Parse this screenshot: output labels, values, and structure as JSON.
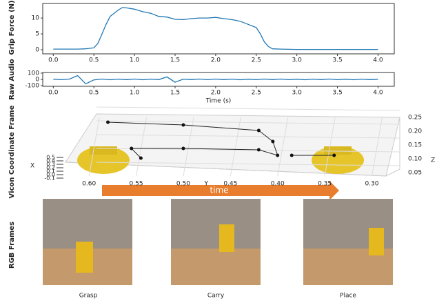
{
  "chart_data": [
    {
      "type": "line",
      "ylabel": "Grip Force (N)",
      "color": "#1f77b4",
      "x": [
        0,
        0.1,
        0.2,
        0.3,
        0.4,
        0.5,
        0.55,
        0.6,
        0.65,
        0.7,
        0.75,
        0.8,
        0.85,
        0.9,
        1.0,
        1.1,
        1.2,
        1.3,
        1.4,
        1.5,
        1.6,
        1.7,
        1.8,
        1.9,
        2.0,
        2.1,
        2.2,
        2.3,
        2.4,
        2.5,
        2.55,
        2.6,
        2.65,
        2.7,
        2.8,
        3.0,
        3.2,
        3.4,
        3.6,
        3.8,
        4.0
      ],
      "values": [
        0.2,
        0.2,
        0.2,
        0.2,
        0.3,
        0.6,
        2,
        5,
        8,
        10.5,
        11.5,
        12.5,
        13.3,
        13.2,
        12.8,
        12,
        11.5,
        10.5,
        10.3,
        9.6,
        9.5,
        9.8,
        10,
        10,
        10.2,
        9.8,
        9.5,
        9,
        8,
        7,
        5,
        2.5,
        1,
        0.3,
        0.2,
        0.1,
        0.1,
        0.1,
        0.1,
        0.1,
        0.1
      ],
      "xlim": [
        -0.13,
        4.2
      ],
      "ylim": [
        -1.3,
        14.6
      ],
      "xticks": [
        {
          "value": 0,
          "label": "0.0"
        },
        0.5,
        {
          "value": 1,
          "label": "1.0"
        },
        1.5,
        {
          "value": 2,
          "label": "2.0"
        },
        2.5,
        {
          "value": 3,
          "label": "3.0"
        },
        3.5,
        {
          "value": 4,
          "label": "4.0"
        }
      ],
      "yticks": [
        0,
        5,
        10
      ]
    },
    {
      "type": "line",
      "ylabel": "Raw Audio",
      "xlabel": "Time (s)",
      "color": "#1f77b4",
      "x": [
        0,
        0.1,
        0.2,
        0.3,
        0.4,
        0.5,
        0.6,
        0.7,
        0.8,
        0.9,
        1.0,
        1.1,
        1.2,
        1.3,
        1.4,
        1.5,
        1.6,
        1.7,
        1.8,
        1.9,
        2.0,
        2.1,
        2.2,
        2.3,
        2.4,
        2.5,
        2.6,
        2.7,
        2.8,
        2.9,
        3.0,
        3.1,
        3.2,
        3.3,
        3.4,
        3.5,
        3.6,
        3.7,
        3.8,
        3.9,
        4.0
      ],
      "values": [
        3,
        -4,
        5,
        60,
        -70,
        -8,
        6,
        -5,
        4,
        -3,
        5,
        -6,
        4,
        -3,
        40,
        -45,
        4,
        -3,
        5,
        -4,
        6,
        -3,
        4,
        -5,
        3,
        -4,
        5,
        -3,
        6,
        -4,
        3,
        -5,
        4,
        -3,
        5,
        -4,
        3,
        -5,
        4,
        -3,
        2
      ],
      "xlim": [
        -0.13,
        4.2
      ],
      "ylim": [
        -110,
        110
      ],
      "xticks": [
        {
          "value": 0,
          "label": "0.0"
        },
        0.5,
        {
          "value": 1,
          "label": "1.0"
        },
        1.5,
        {
          "value": 2,
          "label": "2.0"
        },
        2.5,
        {
          "value": 3,
          "label": "3.0"
        },
        3.5,
        {
          "value": 4,
          "label": "4.0"
        }
      ],
      "yticks": [
        -100,
        0,
        100
      ]
    },
    {
      "type": "line3d",
      "title": "Vicon Coordinate Frame",
      "xlabel": "X",
      "ylabel": "Y",
      "zlabel": "Z",
      "color": "#222222",
      "series": [
        {
          "y": [
            0.58,
            0.5,
            0.42,
            0.405,
            0.4,
            0.42,
            0.5,
            0.555,
            0.545
          ],
          "z": [
            0.22,
            0.21,
            0.19,
            0.15,
            0.1,
            0.12,
            0.125,
            0.125,
            0.09
          ]
        },
        {
          "y": [
            0.385,
            0.34
          ],
          "z": [
            0.1,
            0.1
          ]
        }
      ],
      "ylim": [
        0.625,
        0.285
      ],
      "zlim": [
        0.05,
        0.25
      ],
      "xlim": [
        -0.1,
        0.5
      ],
      "yticks": [
        {
          "value": 0.6,
          "label": "0.60"
        },
        0.55,
        {
          "value": 0.5,
          "label": "0.50"
        },
        0.45,
        {
          "value": 0.4,
          "label": "0.40"
        },
        0.35,
        {
          "value": 0.3,
          "label": "0.30"
        }
      ],
      "zticks": [
        0.05,
        {
          "value": 0.1,
          "label": "0.10"
        },
        0.15,
        {
          "value": 0.2,
          "label": "0.20"
        },
        0.25
      ],
      "xticks": [
        -0.1,
        {
          "value": 0,
          "label": "0.0"
        },
        0.1,
        0.2,
        0.3,
        0.4,
        0.5
      ]
    }
  ],
  "figure": {
    "time_label": "time",
    "panel_label": "RGB Frames",
    "frames": [
      "Grasp",
      "Carry",
      "Place"
    ]
  }
}
